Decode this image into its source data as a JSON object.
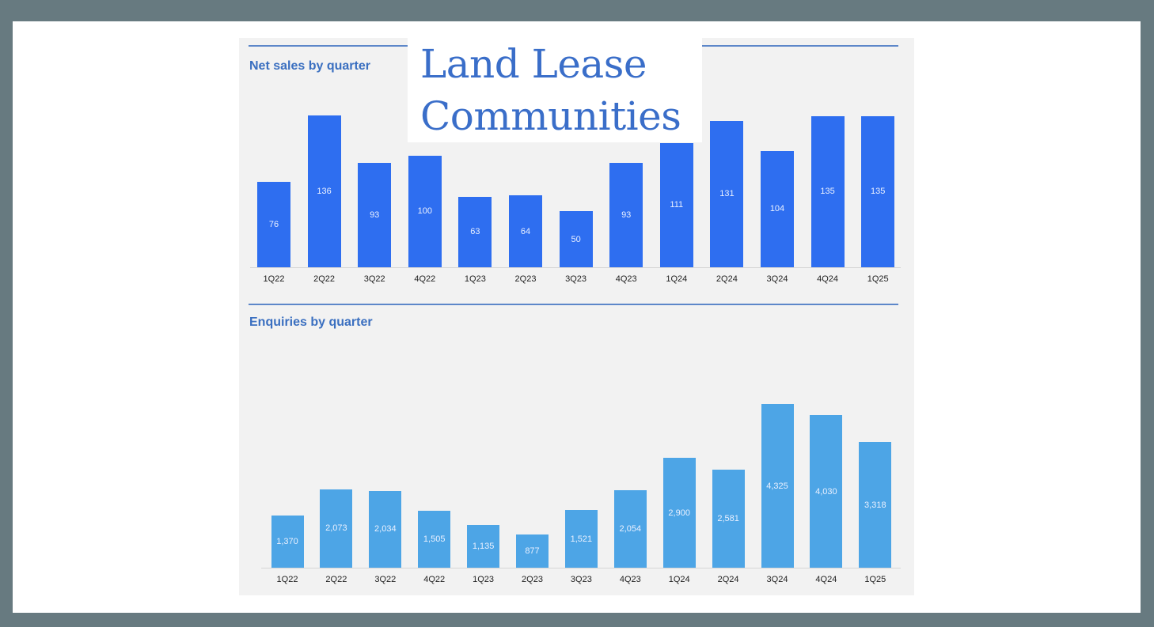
{
  "overlay_title": {
    "line1": "Land Lease",
    "line2": "Communities"
  },
  "colors": {
    "frame": "#677a80",
    "card": "#ffffff",
    "panel": "#f2f2f2",
    "net_sales_bar": "#2e6ef0",
    "enquiries_bar": "#4da5e6",
    "title_text": "#3a6fc0",
    "rule": "#5d87c9"
  },
  "chart_data": [
    {
      "type": "bar",
      "title": "Net sales by quarter",
      "xlabel": "",
      "ylabel": "",
      "categories": [
        "1Q22",
        "2Q22",
        "3Q22",
        "4Q22",
        "1Q23",
        "2Q23",
        "3Q23",
        "4Q23",
        "1Q24",
        "2Q24",
        "3Q24",
        "4Q24",
        "1Q25"
      ],
      "values": [
        76,
        136,
        93,
        100,
        63,
        64,
        50,
        93,
        111,
        131,
        104,
        135,
        135
      ],
      "value_labels": [
        "76",
        "136",
        "93",
        "100",
        "63",
        "64",
        "50",
        "93",
        "111",
        "131",
        "104",
        "135",
        "135"
      ],
      "ylim": [
        0,
        140
      ],
      "grid": false,
      "legend": null,
      "data_labels": "inside bars"
    },
    {
      "type": "bar",
      "title": "Enquiries by quarter",
      "xlabel": "",
      "ylabel": "",
      "categories": [
        "1Q22",
        "2Q22",
        "3Q22",
        "4Q22",
        "1Q23",
        "2Q23",
        "3Q23",
        "4Q23",
        "1Q24",
        "2Q24",
        "3Q24",
        "4Q24",
        "1Q25"
      ],
      "values": [
        1370,
        2073,
        2034,
        1505,
        1135,
        877,
        1521,
        2054,
        2900,
        2581,
        4325,
        4030,
        3318
      ],
      "value_labels": [
        "1,370",
        "2,073",
        "2,034",
        "1,505",
        "1,135",
        "877",
        "1,521",
        "2,054",
        "2,900",
        "2,581",
        "4,325",
        "4,030",
        "3,318"
      ],
      "ylim": [
        0,
        6500
      ],
      "grid": false,
      "legend": null,
      "data_labels": "inside bars"
    }
  ]
}
